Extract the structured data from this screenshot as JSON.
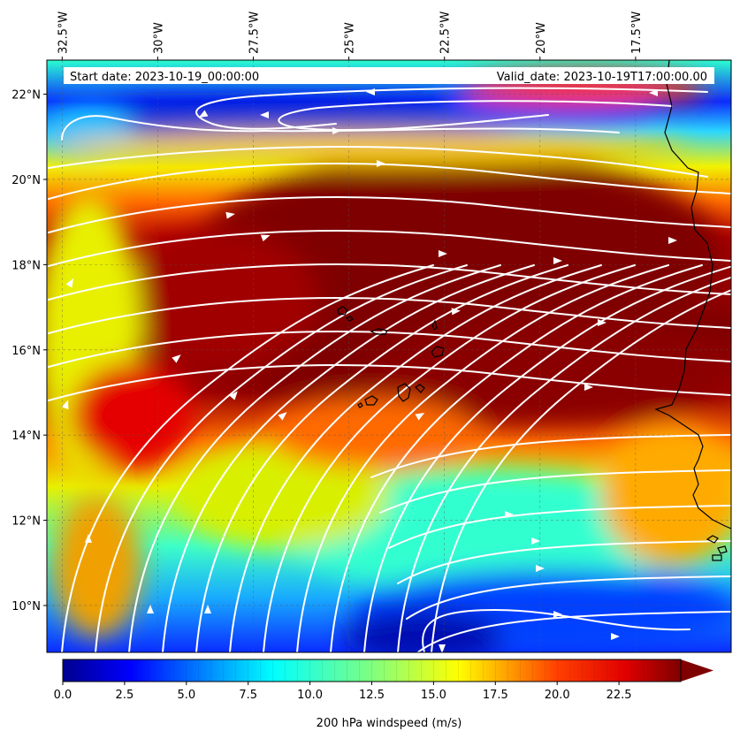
{
  "map": {
    "start_date": "Start date: 2023-10-19_00:00:00",
    "valid_date": "Valid_date: 2023-10-19T17:00:00.00",
    "lon_range": [
      -32.9,
      -15.0
    ],
    "lat_range": [
      8.9,
      22.8
    ],
    "lon_ticks": [
      {
        "value": -32.5,
        "label": "32.5°W"
      },
      {
        "value": -30.0,
        "label": "30°W"
      },
      {
        "value": -27.5,
        "label": "27.5°W"
      },
      {
        "value": -25.0,
        "label": "25°W"
      },
      {
        "value": -22.5,
        "label": "22.5°W"
      },
      {
        "value": -20.0,
        "label": "20°W"
      },
      {
        "value": -17.5,
        "label": "17.5°W"
      }
    ],
    "lat_ticks": [
      {
        "value": 10,
        "label": "10°N"
      },
      {
        "value": 12,
        "label": "12°N"
      },
      {
        "value": 14,
        "label": "14°N"
      },
      {
        "value": 16,
        "label": "16°N"
      },
      {
        "value": 18,
        "label": "18°N"
      },
      {
        "value": 20,
        "label": "20°N"
      },
      {
        "value": 22,
        "label": "22°N"
      }
    ],
    "colors": {
      "dark_red": "#7f0000",
      "red": "#e41a00",
      "orange": "#ff8c00",
      "yellow": "#f2f200",
      "cyan": "#2bffd0",
      "blue": "#0050ff",
      "navy": "#00008f",
      "streamline": "#ffffff",
      "coastline": "#000000"
    }
  },
  "colorbar": {
    "label": "200 hPa windspeed (m/s)",
    "min": 0,
    "max": 25,
    "extend": "max",
    "ticks": [
      {
        "value": 0,
        "label": "0.0"
      },
      {
        "value": 2.5,
        "label": "2.5"
      },
      {
        "value": 5,
        "label": "5.0"
      },
      {
        "value": 7.5,
        "label": "7.5"
      },
      {
        "value": 10,
        "label": "10.0"
      },
      {
        "value": 12.5,
        "label": "12.5"
      },
      {
        "value": 15,
        "label": "15.0"
      },
      {
        "value": 17.5,
        "label": "17.5"
      },
      {
        "value": 20,
        "label": "20.0"
      },
      {
        "value": 22.5,
        "label": "22.5"
      }
    ]
  }
}
